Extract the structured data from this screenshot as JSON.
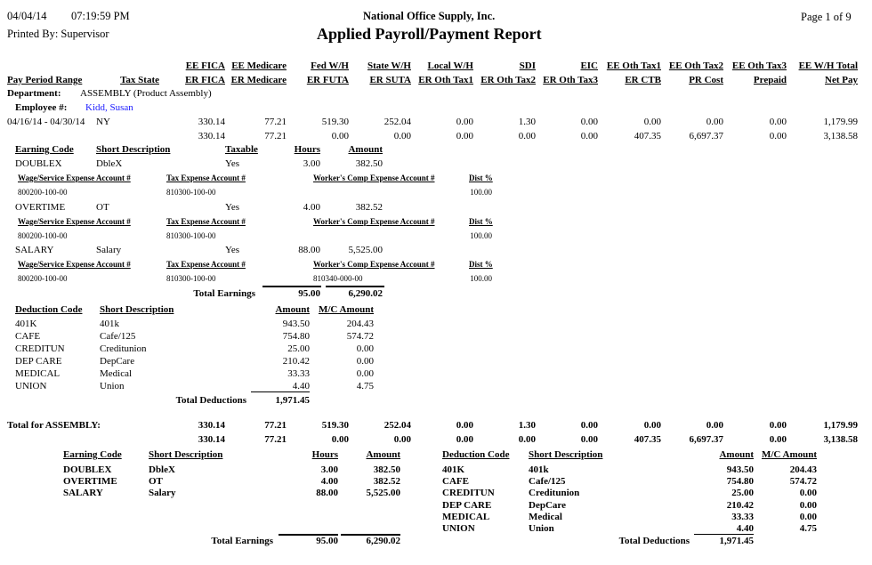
{
  "header": {
    "date": "04/04/14",
    "time": "07:19:59 PM",
    "printed_by": "Printed By: Supervisor",
    "company": "National Office Supply, Inc.",
    "title": "Applied Payroll/Payment Report",
    "page": "Page 1 of 9"
  },
  "columns": {
    "row1": [
      "EE FICA",
      "EE Medicare",
      "Fed W/H",
      "State W/H",
      "Local W/H",
      "SDI",
      "EIC",
      "EE Oth Tax1",
      "EE Oth Tax2",
      "EE Oth Tax3",
      "EE W/H Total"
    ],
    "row2": [
      "ER FICA",
      "ER Medicare",
      "ER FUTA",
      "ER SUTA",
      "ER Oth Tax1",
      "ER Oth Tax2",
      "ER Oth Tax3",
      "ER CTB",
      "PR Cost",
      "Prepaid",
      "Net Pay"
    ],
    "pay_period": "Pay Period Range",
    "tax_state": "Tax State"
  },
  "department": {
    "label": "Department:",
    "value": "ASSEMBLY (Product Assembly)"
  },
  "employee": {
    "label": "Employee #:",
    "name": "Kidd, Susan",
    "period": "04/16/14 - 04/30/14",
    "state": "NY",
    "row1": [
      "330.14",
      "77.21",
      "519.30",
      "252.04",
      "0.00",
      "1.30",
      "0.00",
      "0.00",
      "0.00",
      "0.00",
      "1,179.99"
    ],
    "row2": [
      "330.14",
      "77.21",
      "0.00",
      "0.00",
      "0.00",
      "0.00",
      "0.00",
      "407.35",
      "6,697.37",
      "0.00",
      "3,138.58"
    ]
  },
  "earnings": {
    "headers": [
      "Earning Code",
      "Short Description",
      "Taxable",
      "Hours",
      "Amount"
    ],
    "acct_headers": [
      "Wage/Service Expense Account #",
      "Tax Expense Account #",
      "Worker's Comp Expense Account #",
      "Dist %"
    ],
    "items": [
      {
        "code": "DOUBLEX",
        "desc": "DbleX",
        "taxable": "Yes",
        "hours": "3.00",
        "amount": "382.50",
        "wage": "800200-100-00",
        "tax": "810300-100-00",
        "wc": "",
        "dist": "100.00"
      },
      {
        "code": "OVERTIME",
        "desc": "OT",
        "taxable": "Yes",
        "hours": "4.00",
        "amount": "382.52",
        "wage": "800200-100-00",
        "tax": "810300-100-00",
        "wc": "",
        "dist": "100.00"
      },
      {
        "code": "SALARY",
        "desc": "Salary",
        "taxable": "Yes",
        "hours": "88.00",
        "amount": "5,525.00",
        "wage": "800200-100-00",
        "tax": "810300-100-00",
        "wc": "810340-000-00",
        "dist": "100.00"
      }
    ],
    "total_label": "Total Earnings",
    "total_hours": "95.00",
    "total_amount": "6,290.02"
  },
  "deductions": {
    "headers": [
      "Deduction Code",
      "Short Description",
      "Amount",
      "M/C Amount"
    ],
    "items": [
      {
        "code": "401K",
        "desc": "401k",
        "amount": "943.50",
        "mc": "204.43"
      },
      {
        "code": "CAFE",
        "desc": "Cafe/125",
        "amount": "754.80",
        "mc": "574.72"
      },
      {
        "code": "CREDITUN",
        "desc": "Creditunion",
        "amount": "25.00",
        "mc": "0.00"
      },
      {
        "code": "DEP CARE",
        "desc": "DepCare",
        "amount": "210.42",
        "mc": "0.00"
      },
      {
        "code": "MEDICAL",
        "desc": "Medical",
        "amount": "33.33",
        "mc": "0.00"
      },
      {
        "code": "UNION",
        "desc": "Union",
        "amount": "4.40",
        "mc": "4.75"
      }
    ],
    "total_label": "Total Deductions",
    "total_amount": "1,971.45"
  },
  "dept_total": {
    "label": "Total for ASSEMBLY:",
    "row1": [
      "330.14",
      "77.21",
      "519.30",
      "252.04",
      "0.00",
      "1.30",
      "0.00",
      "0.00",
      "0.00",
      "0.00",
      "1,179.99"
    ],
    "row2": [
      "330.14",
      "77.21",
      "0.00",
      "0.00",
      "0.00",
      "0.00",
      "0.00",
      "407.35",
      "6,697.37",
      "0.00",
      "3,138.58"
    ]
  },
  "summary_earnings": {
    "headers": [
      "Earning Code",
      "Short Description",
      "Hours",
      "Amount"
    ],
    "items": [
      {
        "code": "DOUBLEX",
        "desc": "DbleX",
        "hours": "3.00",
        "amount": "382.50"
      },
      {
        "code": "OVERTIME",
        "desc": "OT",
        "hours": "4.00",
        "amount": "382.52"
      },
      {
        "code": "SALARY",
        "desc": "Salary",
        "hours": "88.00",
        "amount": "5,525.00"
      }
    ],
    "total_label": "Total Earnings",
    "total_hours": "95.00",
    "total_amount": "6,290.02"
  },
  "summary_deductions": {
    "headers": [
      "Deduction Code",
      "Short Description",
      "Amount",
      "M/C Amount"
    ],
    "items": [
      {
        "code": "401K",
        "desc": "401k",
        "amount": "943.50",
        "mc": "204.43"
      },
      {
        "code": "CAFE",
        "desc": "Cafe/125",
        "amount": "754.80",
        "mc": "574.72"
      },
      {
        "code": "CREDITUN",
        "desc": "Creditunion",
        "amount": "25.00",
        "mc": "0.00"
      },
      {
        "code": "DEP CARE",
        "desc": "DepCare",
        "amount": "210.42",
        "mc": "0.00"
      },
      {
        "code": "MEDICAL",
        "desc": "Medical",
        "amount": "33.33",
        "mc": "0.00"
      },
      {
        "code": "UNION",
        "desc": "Union",
        "amount": "4.40",
        "mc": "4.75"
      }
    ],
    "total_label": "Total Deductions",
    "total_amount": "1,971.45"
  },
  "colors": {
    "employee_name": "#1a1aff"
  }
}
